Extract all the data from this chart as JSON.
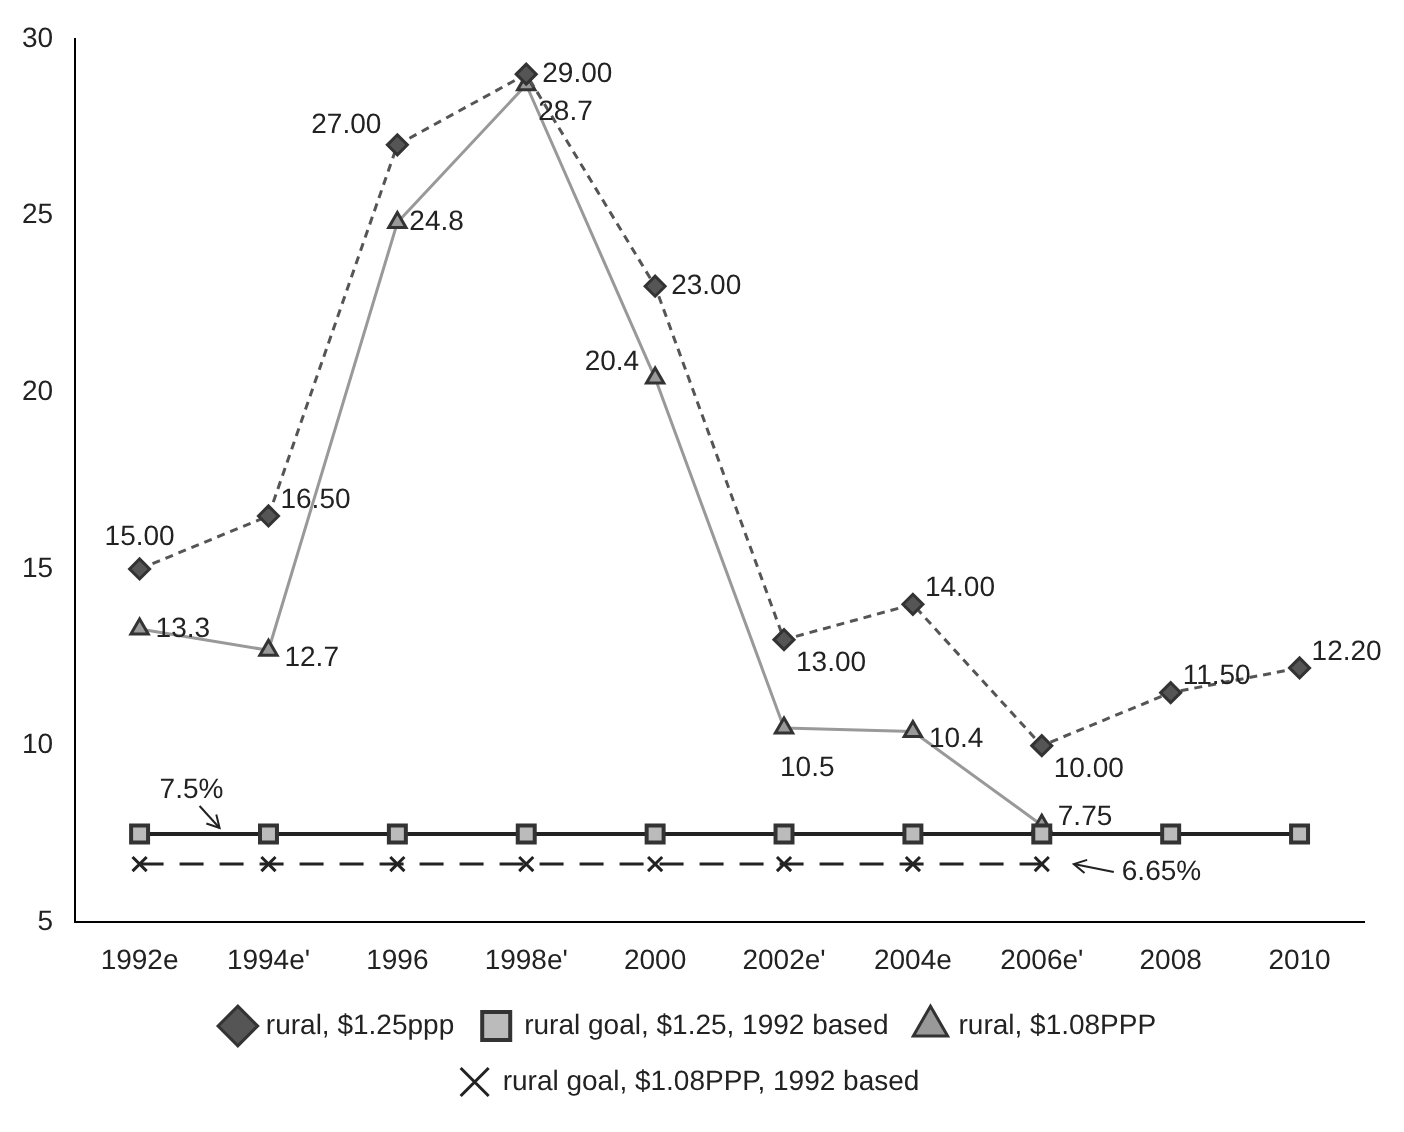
{
  "chart_data": {
    "type": "line",
    "categories": [
      "1992e",
      "1994e'",
      "1996",
      "1998e'",
      "2000",
      "2002e'",
      "2004e",
      "2006e'",
      "2008",
      "2010"
    ],
    "series": [
      {
        "name": "rural, $1.25ppp",
        "color": "#555555",
        "marker": "diamond",
        "line_style": "dashed",
        "values": [
          15,
          16.5,
          27,
          29,
          23,
          13,
          14,
          10,
          11.5,
          12.2
        ],
        "value_labels": [
          "15.00",
          "16.50",
          "27.00",
          "29.00",
          "23.00",
          "13.00",
          "14.00",
          "10.00",
          "11.50",
          "12.20"
        ]
      },
      {
        "name": "rural goal, $1.25, 1992 based",
        "color": "#222222",
        "marker": "square",
        "line_style": "solid",
        "values": [
          7.5,
          7.5,
          7.5,
          7.5,
          7.5,
          7.5,
          7.5,
          7.5,
          7.5,
          7.5
        ]
      },
      {
        "name": "rural, $1.08PPP",
        "color": "#999999",
        "marker": "triangle",
        "line_style": "solid",
        "values": [
          13.3,
          12.7,
          24.8,
          28.7,
          20.4,
          10.5,
          10.4,
          7.75,
          null,
          null
        ],
        "value_labels": [
          "13.3",
          "12.7",
          "24.8",
          "28.7",
          "20.4",
          "10.5",
          "10.4",
          "7.75",
          null,
          null
        ]
      },
      {
        "name": "rural goal, $1.08PPP, 1992 based",
        "color": "#222222",
        "marker": "cross",
        "line_style": "dashed",
        "values": [
          6.65,
          6.65,
          6.65,
          6.65,
          6.65,
          6.65,
          6.65,
          6.65,
          null,
          null
        ]
      }
    ],
    "annotations": [
      {
        "text": "7.5%",
        "x": "1992e",
        "y": 7.5
      },
      {
        "text": "6.65%",
        "x": "2006e'",
        "y": 6.65
      }
    ],
    "ylim": [
      5,
      30
    ],
    "yticks": [
      5,
      10,
      15,
      20,
      25,
      30
    ],
    "grid": false,
    "legend": "bottom"
  }
}
